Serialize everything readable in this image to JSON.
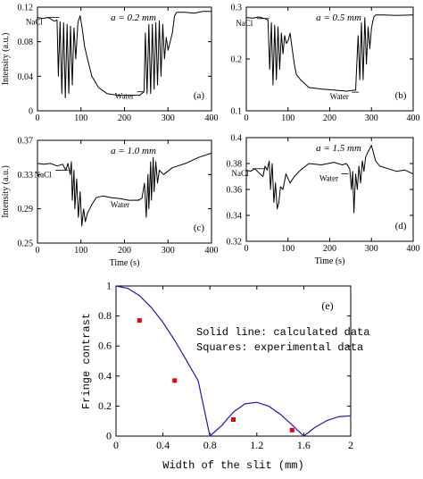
{
  "chart_data": [
    {
      "id": "a",
      "type": "line",
      "panel_label": "(a)",
      "annotation": "a = 0.2 mm",
      "ylabel": "Intensity (a.u.)",
      "xlabel": "",
      "xlim": [
        0,
        400
      ],
      "ylim": [
        0,
        0.12
      ],
      "x_ticks": [
        "0",
        "100",
        "200",
        "300",
        "400"
      ],
      "y_ticks": [
        "0",
        "0.04",
        "0.08",
        "0.12"
      ],
      "y_tick_values": [
        0,
        0.04,
        0.08,
        0.12
      ],
      "arrows": [
        {
          "label": "NaCl",
          "x": 50,
          "y": 0.108
        },
        {
          "label": "Water",
          "x": 245,
          "y": 0.022
        }
      ],
      "grid": false,
      "series": [
        {
          "color": "#000000",
          "lw": 1.0,
          "x": [
            0,
            12,
            25,
            38,
            45,
            48,
            52,
            56,
            60,
            64,
            68,
            72,
            76,
            80,
            84,
            88,
            93,
            98,
            103,
            108,
            115,
            125,
            140,
            160,
            185,
            210,
            235,
            245,
            248,
            252,
            256,
            260,
            264,
            268,
            272,
            276,
            280,
            284,
            288,
            292,
            296,
            300,
            305,
            310,
            315,
            320,
            340,
            360,
            380,
            400
          ],
          "y": [
            0.108,
            0.107,
            0.108,
            0.104,
            0.105,
            0.04,
            0.103,
            0.02,
            0.102,
            0.015,
            0.1,
            0.02,
            0.098,
            0.03,
            0.096,
            0.06,
            0.102,
            0.11,
            0.095,
            0.075,
            0.06,
            0.04,
            0.027,
            0.02,
            0.018,
            0.018,
            0.018,
            0.022,
            0.09,
            0.02,
            0.1,
            0.02,
            0.1,
            0.025,
            0.102,
            0.03,
            0.104,
            0.04,
            0.1,
            0.06,
            0.085,
            0.07,
            0.08,
            0.09,
            0.11,
            0.114,
            0.114,
            0.113,
            0.115,
            0.115
          ]
        }
      ]
    },
    {
      "id": "b",
      "type": "line",
      "panel_label": "(b)",
      "annotation": "a = 0.5 mm",
      "ylabel": "",
      "xlabel": "",
      "xlim": [
        0,
        400
      ],
      "ylim": [
        0.1,
        0.3
      ],
      "x_ticks": [
        "0",
        "100",
        "200",
        "300",
        "400"
      ],
      "y_ticks": [
        "0.1",
        "0.2",
        "0.3"
      ],
      "y_tick_values": [
        0.1,
        0.2,
        0.3
      ],
      "arrows": [
        {
          "label": "NaCl",
          "x": 55,
          "y": 0.278
        },
        {
          "label": "Water",
          "x": 270,
          "y": 0.136
        }
      ],
      "grid": false,
      "series": [
        {
          "color": "#000000",
          "lw": 1.0,
          "x": [
            0,
            15,
            30,
            45,
            52,
            56,
            60,
            64,
            68,
            72,
            76,
            80,
            84,
            88,
            92,
            96,
            100,
            105,
            110,
            115,
            120,
            130,
            150,
            180,
            210,
            240,
            262,
            268,
            272,
            276,
            280,
            284,
            288,
            292,
            296,
            300,
            305,
            310,
            330,
            360,
            400
          ],
          "y": [
            0.28,
            0.279,
            0.281,
            0.278,
            0.275,
            0.18,
            0.27,
            0.15,
            0.265,
            0.16,
            0.262,
            0.18,
            0.25,
            0.21,
            0.245,
            0.23,
            0.235,
            0.25,
            0.22,
            0.19,
            0.17,
            0.16,
            0.145,
            0.142,
            0.14,
            0.138,
            0.14,
            0.245,
            0.16,
            0.27,
            0.16,
            0.28,
            0.19,
            0.262,
            0.22,
            0.26,
            0.28,
            0.285,
            0.285,
            0.284,
            0.285
          ]
        }
      ]
    },
    {
      "id": "c",
      "type": "line",
      "panel_label": "(c)",
      "annotation": "a = 1.0 mm",
      "ylabel": "Intensity (a.u.)",
      "xlabel": "Time (s)",
      "xlim": [
        0,
        400
      ],
      "ylim": [
        0.25,
        0.37
      ],
      "x_ticks": [
        "0",
        "100",
        "200",
        "300",
        "400"
      ],
      "y_ticks": [
        "0.25",
        "0.29",
        "0.33",
        "0.37"
      ],
      "y_tick_values": [
        0.25,
        0.29,
        0.33,
        0.37
      ],
      "arrows": [
        {
          "label": "NaCl",
          "x": 70,
          "y": 0.335
        },
        {
          "label": "Water",
          "x": 235,
          "y": 0.3
        }
      ],
      "grid": false,
      "series": [
        {
          "color": "#000000",
          "lw": 1.0,
          "x": [
            0,
            15,
            30,
            45,
            58,
            65,
            70,
            75,
            78,
            80,
            84,
            86,
            90,
            94,
            98,
            102,
            106,
            110,
            115,
            120,
            125,
            135,
            150,
            170,
            190,
            210,
            230,
            240,
            246,
            250,
            254,
            256,
            260,
            262,
            266,
            268,
            272,
            276,
            280,
            290,
            310,
            340,
            370,
            400
          ],
          "y": [
            0.343,
            0.342,
            0.343,
            0.34,
            0.342,
            0.335,
            0.343,
            0.33,
            0.345,
            0.3,
            0.335,
            0.29,
            0.325,
            0.28,
            0.31,
            0.27,
            0.29,
            0.275,
            0.285,
            0.29,
            0.295,
            0.303,
            0.305,
            0.303,
            0.302,
            0.3,
            0.3,
            0.302,
            0.32,
            0.28,
            0.33,
            0.29,
            0.345,
            0.3,
            0.35,
            0.31,
            0.345,
            0.32,
            0.335,
            0.33,
            0.338,
            0.343,
            0.35,
            0.355
          ]
        }
      ]
    },
    {
      "id": "d",
      "type": "line",
      "panel_label": "(d)",
      "annotation": "a = 1.5 mm",
      "ylabel": "",
      "xlabel": "Time (s)",
      "xlim": [
        0,
        400
      ],
      "ylim": [
        0.32,
        0.4
      ],
      "x_ticks": [
        "0",
        "100",
        "200",
        "300",
        "400"
      ],
      "y_ticks": [
        "0.32",
        "0.34",
        "0.36",
        "0.38",
        "0.4"
      ],
      "y_tick_values": [
        0.32,
        0.34,
        0.36,
        0.38,
        0.4
      ],
      "arrows": [
        {
          "label": "NaCl",
          "x": 45,
          "y": 0.376
        },
        {
          "label": "Water",
          "x": 245,
          "y": 0.372
        }
      ],
      "grid": false,
      "series": [
        {
          "color": "#000000",
          "lw": 1.0,
          "x": [
            0,
            10,
            20,
            30,
            40,
            45,
            50,
            55,
            58,
            62,
            66,
            70,
            74,
            78,
            82,
            88,
            95,
            105,
            115,
            130,
            150,
            180,
            210,
            230,
            240,
            248,
            252,
            255,
            258,
            262,
            266,
            270,
            274,
            278,
            282,
            286,
            290,
            300,
            310,
            320,
            340,
            360,
            380,
            400
          ],
          "y": [
            0.375,
            0.374,
            0.376,
            0.373,
            0.37,
            0.378,
            0.375,
            0.382,
            0.36,
            0.38,
            0.35,
            0.365,
            0.345,
            0.35,
            0.362,
            0.36,
            0.372,
            0.365,
            0.37,
            0.375,
            0.38,
            0.379,
            0.381,
            0.379,
            0.38,
            0.376,
            0.36,
            0.374,
            0.342,
            0.372,
            0.36,
            0.378,
            0.365,
            0.382,
            0.374,
            0.385,
            0.388,
            0.394,
            0.382,
            0.378,
            0.376,
            0.374,
            0.375,
            0.372
          ]
        }
      ]
    },
    {
      "id": "e",
      "type": "scatter",
      "panel_label": "(e)",
      "ylabel": "Fringe contrast",
      "xlabel": "Width of the slit (mm)",
      "xlim": [
        0,
        2
      ],
      "ylim": [
        0,
        1
      ],
      "x_ticks": [
        "0",
        "0.4",
        "0.8",
        "1.2",
        "1.6",
        "2"
      ],
      "x_tick_values": [
        0,
        0.4,
        0.8,
        1.2,
        1.6,
        2
      ],
      "y_ticks": [
        "0",
        "0.2",
        "0.4",
        "0.6",
        "0.8",
        "1"
      ],
      "y_tick_values": [
        0,
        0.2,
        0.4,
        0.6,
        0.8,
        1
      ],
      "legend_lines": [
        "Solid line: calculated data",
        "Squares: experimental data"
      ],
      "grid": false,
      "series": [
        {
          "kind": "line",
          "color": "#1a1ab4",
          "x": [
            0,
            0.1,
            0.2,
            0.3,
            0.4,
            0.5,
            0.6,
            0.7,
            0.8,
            0.9,
            1.0,
            1.1,
            1.2,
            1.3,
            1.4,
            1.5,
            1.6,
            1.7,
            1.8,
            1.9,
            2.0
          ],
          "y": [
            1.0,
            0.984,
            0.936,
            0.858,
            0.757,
            0.637,
            0.505,
            0.368,
            0.0,
            0.07,
            0.16,
            0.215,
            0.225,
            0.2,
            0.145,
            0.075,
            0.0,
            0.06,
            0.105,
            0.13,
            0.135
          ]
        },
        {
          "kind": "points",
          "color": "#e8000b",
          "x": [
            0.2,
            0.5,
            1.0,
            1.5
          ],
          "y": [
            0.77,
            0.37,
            0.11,
            0.04
          ]
        }
      ]
    }
  ]
}
